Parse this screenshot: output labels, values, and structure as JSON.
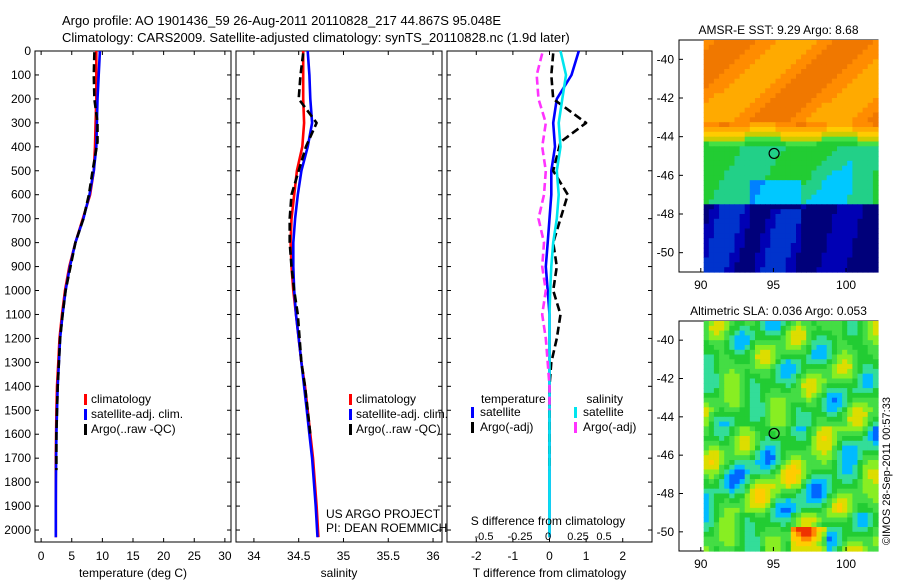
{
  "header": {
    "line1": "Argo profile: AO 1901436_59 26-Aug-2011 20110828_217 44.867S 95.048E",
    "line2": "Climatology: CARS2009. Satellite-adjusted climatology: synTS_20110828.nc (1.9d later)"
  },
  "credit": "US ARGO PROJECT",
  "pi": "PI: DEAN ROEMMICH",
  "timestamp": "©IMOS 28-Sep-2011 00:57:33",
  "colors": {
    "clim": "#ff0000",
    "sat": "#0000ff",
    "argo": "#000000",
    "sat_s": "#00e5ee",
    "argo_s": "#ff33ff"
  },
  "chart_data": [
    {
      "type": "line",
      "ylim": [
        2050,
        0
      ],
      "yticks": [
        0,
        100,
        200,
        300,
        400,
        500,
        600,
        700,
        800,
        900,
        1000,
        1100,
        1200,
        1300,
        1400,
        1500,
        1600,
        1700,
        1800,
        1900,
        2000
      ],
      "xlim": [
        -1,
        31
      ],
      "xticks": [
        0,
        5,
        10,
        15,
        20,
        25,
        30
      ],
      "xlabel": "temperature (deg C)",
      "legend": [
        "climatology",
        "satellite-adj. clim.",
        "Argo(..raw -QC)"
      ],
      "series": [
        {
          "name": "climatology",
          "color": "#ff0000",
          "x": [
            9.0,
            9.0,
            9.0,
            8.9,
            8.8,
            8.6,
            8.0,
            6.8,
            5.6,
            4.6,
            3.9,
            3.4,
            3.0,
            2.8,
            2.6,
            2.5,
            2.45,
            2.4,
            2.4,
            2.4,
            2.4
          ],
          "y": [
            0,
            100,
            200,
            300,
            400,
            500,
            600,
            700,
            800,
            900,
            1000,
            1100,
            1200,
            1300,
            1400,
            1500,
            1600,
            1700,
            1800,
            1900,
            2030
          ]
        },
        {
          "name": "satellite-adj. clim.",
          "color": "#0000ff",
          "x": [
            9.6,
            9.4,
            9.2,
            9.1,
            9.0,
            8.6,
            7.9,
            6.9,
            5.6,
            4.7,
            4.0,
            3.5,
            3.1,
            2.9,
            2.7,
            2.6,
            2.5,
            2.45,
            2.42,
            2.4,
            2.4
          ],
          "y": [
            0,
            100,
            200,
            300,
            400,
            500,
            600,
            700,
            800,
            900,
            1000,
            1100,
            1200,
            1300,
            1400,
            1500,
            1600,
            1700,
            1800,
            1900,
            2030
          ]
        },
        {
          "name": "Argo(..raw -QC)",
          "color": "#000000",
          "dashed": true,
          "x": [
            8.7,
            8.6,
            8.7,
            9.2,
            9.2,
            8.4,
            7.8,
            6.9,
            5.6,
            4.8,
            4.0,
            3.5,
            3.1,
            2.9,
            2.7,
            2.6,
            2.5,
            2.5
          ],
          "y": [
            5,
            100,
            200,
            300,
            380,
            500,
            600,
            700,
            800,
            900,
            1000,
            1100,
            1200,
            1300,
            1400,
            1500,
            1600,
            1750
          ]
        }
      ]
    },
    {
      "type": "line",
      "ylim": [
        2050,
        0
      ],
      "xlim": [
        33.8,
        36.1
      ],
      "xticks": [
        34,
        34.5,
        35,
        35.5,
        36
      ],
      "xlabel": "salinity",
      "legend": [
        "climatology",
        "satellite-adj. clim.",
        "Argo(..raw -QC)"
      ],
      "series": [
        {
          "name": "climatology",
          "color": "#ff0000",
          "x": [
            34.55,
            34.55,
            34.55,
            34.56,
            34.54,
            34.48,
            34.45,
            34.42,
            34.41,
            34.42,
            34.44,
            34.47,
            34.5,
            34.53,
            34.57,
            34.6,
            34.63,
            34.66,
            34.68,
            34.7,
            34.72
          ],
          "y": [
            0,
            100,
            200,
            300,
            400,
            500,
            600,
            700,
            800,
            900,
            1000,
            1100,
            1200,
            1300,
            1400,
            1500,
            1600,
            1700,
            1800,
            1900,
            2030
          ]
        },
        {
          "name": "satellite-adj. clim.",
          "color": "#0000ff",
          "x": [
            34.6,
            34.62,
            34.63,
            34.65,
            34.6,
            34.53,
            34.49,
            34.46,
            34.44,
            34.44,
            34.45,
            34.47,
            34.5,
            34.53,
            34.56,
            34.59,
            34.62,
            34.65,
            34.67,
            34.69,
            34.71
          ],
          "y": [
            0,
            100,
            200,
            300,
            400,
            500,
            600,
            700,
            800,
            900,
            1000,
            1100,
            1200,
            1300,
            1400,
            1500,
            1600,
            1700,
            1800,
            1900,
            2030
          ]
        },
        {
          "name": "Argo(..raw -QC)",
          "color": "#000000",
          "dashed": true,
          "x": [
            34.55,
            34.52,
            34.5,
            34.7,
            34.58,
            34.5,
            34.42,
            34.4,
            34.4,
            34.42,
            34.45,
            34.49,
            34.51,
            34.53,
            34.57,
            34.6,
            34.63
          ],
          "y": [
            10,
            100,
            200,
            300,
            400,
            500,
            600,
            700,
            800,
            900,
            1000,
            1100,
            1200,
            1300,
            1400,
            1500,
            1600
          ]
        }
      ]
    },
    {
      "type": "line",
      "ylim": [
        2050,
        0
      ],
      "xlim": [
        -2.8,
        2.8
      ],
      "xticks": [
        -2,
        -1,
        0,
        1,
        2
      ],
      "xlabel": "T difference from climatology",
      "s_axis_ticks": [
        "-0.5",
        "-0.25",
        "0",
        "0.25",
        "0.5"
      ],
      "s_axis_label": "S difference from climatology",
      "legend_titles": [
        "temperature",
        "salinity"
      ],
      "legend": [
        "satellite",
        "Argo(-adj)",
        "satellite",
        "Argo(-adj)"
      ],
      "series": [
        {
          "name": "satellite",
          "color": "#0000ff",
          "x": [
            0.8,
            0.6,
            0.2,
            0.1,
            0.15,
            0.05,
            0.05,
            0.0,
            -0.05,
            -0.1,
            -0.05,
            0.0,
            0.0,
            0.0,
            0.0,
            0.0,
            0.0,
            0.0,
            0.0,
            0.0,
            0.0
          ],
          "y": [
            0,
            100,
            200,
            300,
            400,
            500,
            600,
            700,
            800,
            900,
            1000,
            1100,
            1200,
            1300,
            1400,
            1500,
            1600,
            1700,
            1800,
            1900,
            2030
          ]
        },
        {
          "name": "Argo(-adj)",
          "color": "#000000",
          "dashed": true,
          "x": [
            0.1,
            0.05,
            0.1,
            1.0,
            0.3,
            0.1,
            0.5,
            0.3,
            0.1,
            0.2,
            0.1,
            0.3,
            0.2,
            0.05,
            0.0,
            0.0,
            0.0,
            0.0
          ],
          "y": [
            10,
            100,
            200,
            300,
            380,
            500,
            600,
            700,
            800,
            900,
            1000,
            1100,
            1200,
            1300,
            1400,
            1500,
            1600,
            1750
          ]
        },
        {
          "name": "satellite",
          "color": "#00e5ee",
          "x": [
            0.3,
            0.45,
            0.35,
            0.25,
            0.3,
            0.2,
            0.25,
            0.2,
            0.1,
            0.05,
            0.02,
            0.0,
            0.0,
            0.0,
            0.0,
            0.0,
            0.0,
            0.0,
            0.0,
            0.0,
            0.0
          ],
          "y": [
            0,
            100,
            200,
            300,
            400,
            500,
            600,
            700,
            800,
            900,
            1000,
            1100,
            1200,
            1300,
            1400,
            1500,
            1600,
            1700,
            1800,
            1900,
            2030
          ]
        },
        {
          "name": "Argo(-adj)",
          "color": "#ff33ff",
          "dashed": true,
          "x": [
            -0.2,
            -0.35,
            -0.3,
            -0.1,
            -0.2,
            -0.1,
            -0.15,
            -0.3,
            -0.15,
            -0.2,
            -0.1,
            -0.2,
            -0.1,
            -0.05,
            0.0,
            0.0
          ],
          "y": [
            10,
            100,
            200,
            300,
            400,
            500,
            600,
            700,
            800,
            900,
            1000,
            1100,
            1200,
            1300,
            1400,
            1500
          ]
        }
      ]
    },
    {
      "type": "heatmap",
      "title": "AMSR-E SST: 9.29 Argo: 8.68",
      "xlim": [
        88.5,
        102.2
      ],
      "ylim": [
        -51,
        -39
      ],
      "xticks": [
        90,
        95,
        100
      ],
      "yticks": [
        -40,
        -42,
        -44,
        -46,
        -48,
        -50
      ],
      "marker": [
        95.048,
        -44.867
      ]
    },
    {
      "type": "heatmap",
      "title": "Altimetric SLA: 0.036 Argo: 0.053",
      "xlim": [
        88.5,
        102.2
      ],
      "ylim": [
        -51,
        -39
      ],
      "xticks": [
        90,
        95,
        100
      ],
      "yticks": [
        -40,
        -42,
        -44,
        -46,
        -48,
        -50
      ],
      "marker": [
        95.048,
        -44.867
      ]
    }
  ]
}
